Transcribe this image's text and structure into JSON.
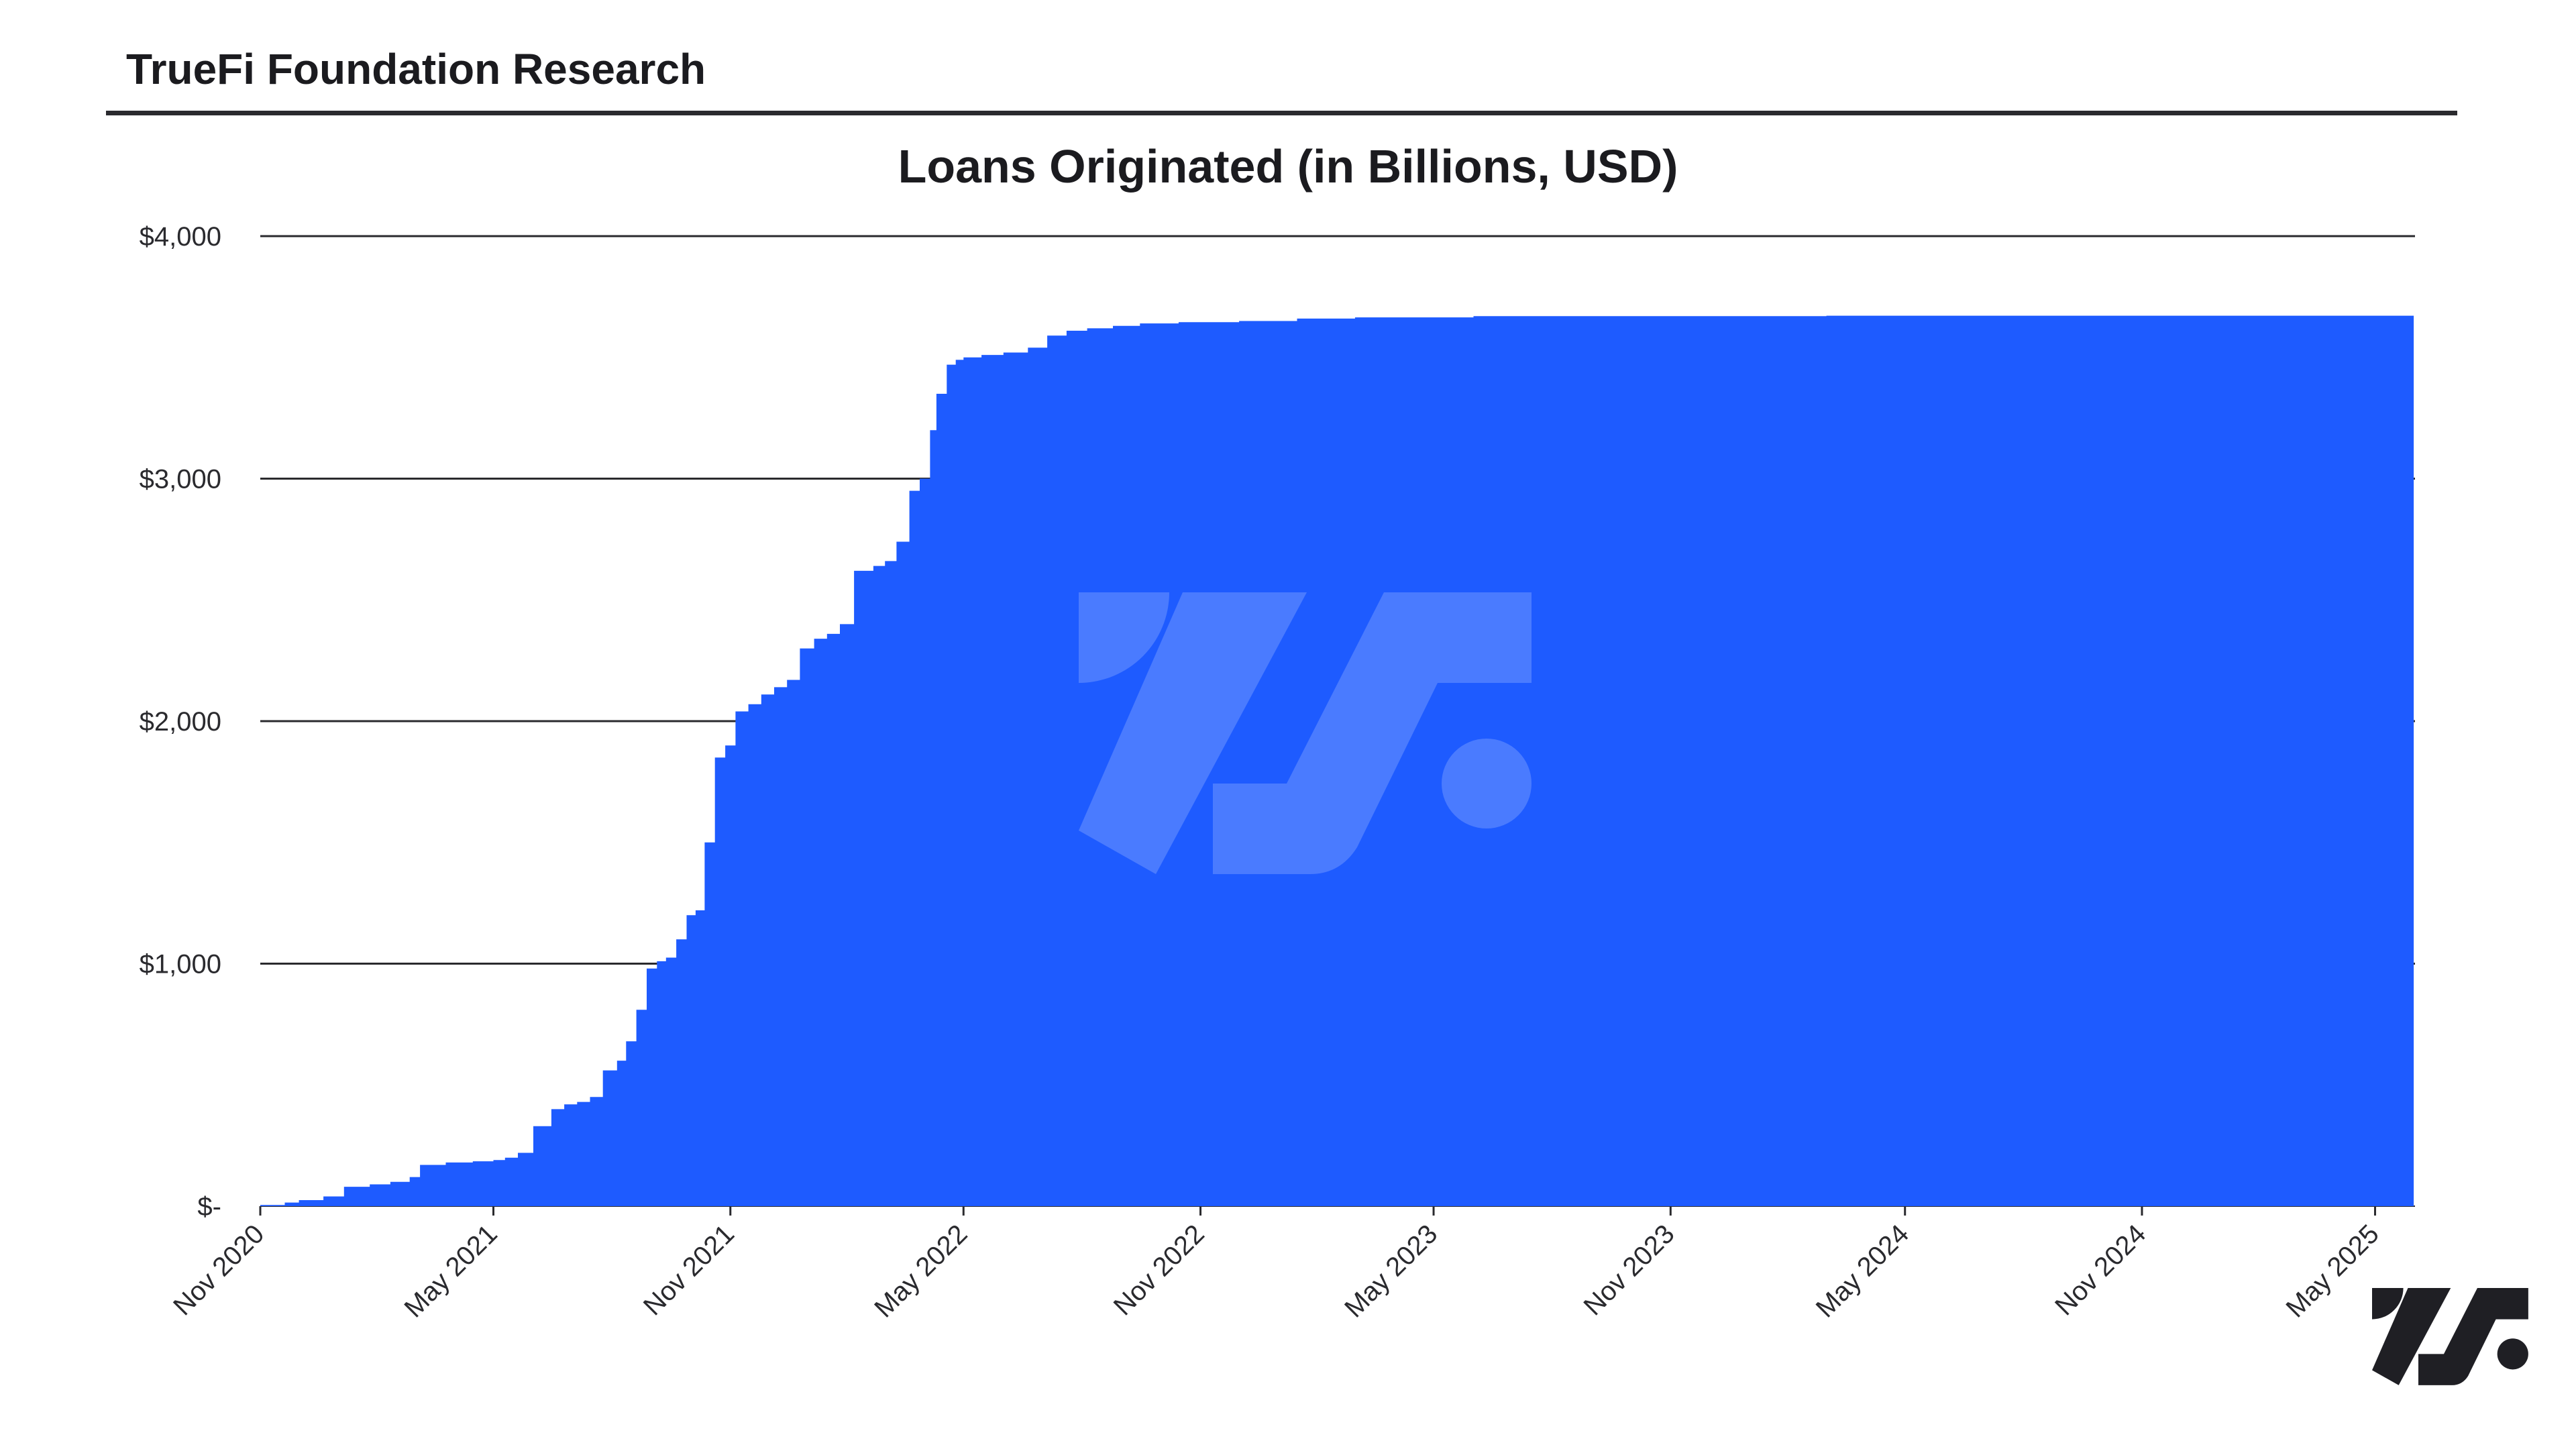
{
  "header": {
    "brand_title": "TrueFi Foundation Research"
  },
  "colors": {
    "area_fill": "#1E5BFF",
    "watermark": "#4A7BFF",
    "logo": "#1F1F24",
    "grid": "#2A2A2E"
  },
  "icons": {
    "watermark": "truefi-logo-icon",
    "corner_logo": "truefi-logo-icon"
  },
  "chart_data": {
    "type": "area",
    "title": "Loans Originated (in Billions, USD)",
    "xlabel": "",
    "ylabel": "",
    "x_axis": "date",
    "xlim": [
      "2020-11-01",
      "2025-06-01"
    ],
    "ylim": [
      0,
      4000
    ],
    "grid": "horizontal",
    "legend": "none",
    "x_tick_labels": [
      "Nov 2020",
      "May 2021",
      "Nov 2021",
      "May 2022",
      "Nov 2022",
      "May 2023",
      "Nov 2023",
      "May 2024",
      "Nov 2024",
      "May 2025"
    ],
    "x_tick_dates": [
      "2020-11-01",
      "2021-05-01",
      "2021-11-01",
      "2022-05-01",
      "2022-11-01",
      "2023-05-01",
      "2023-11-01",
      "2024-05-01",
      "2024-11-01",
      "2025-05-01"
    ],
    "y_ticks": [
      0,
      1000,
      2000,
      3000,
      4000
    ],
    "y_tick_labels": [
      "$-",
      "$1,000",
      "$2,000",
      "$3,000",
      "$4,000"
    ],
    "series": [
      {
        "x": [
          "2020-11-01",
          "2020-11-20",
          "2020-12-01",
          "2020-12-20",
          "2021-01-05",
          "2021-01-25",
          "2021-02-10",
          "2021-02-25",
          "2021-03-05",
          "2021-03-25",
          "2021-04-15",
          "2021-05-01",
          "2021-05-10",
          "2021-05-20",
          "2021-06-01",
          "2021-06-15",
          "2021-06-25",
          "2021-07-05",
          "2021-07-15",
          "2021-07-25",
          "2021-08-05",
          "2021-08-12",
          "2021-08-20",
          "2021-08-28",
          "2021-09-05",
          "2021-09-12",
          "2021-09-20",
          "2021-09-28",
          "2021-10-05",
          "2021-10-12",
          "2021-10-20",
          "2021-10-28",
          "2021-11-05",
          "2021-11-15",
          "2021-11-25",
          "2021-12-05",
          "2021-12-15",
          "2021-12-25",
          "2022-01-05",
          "2022-01-15",
          "2022-01-25",
          "2022-02-05",
          "2022-02-20",
          "2022-03-01",
          "2022-03-10",
          "2022-03-20",
          "2022-03-28",
          "2022-04-05",
          "2022-04-10",
          "2022-04-18",
          "2022-04-25",
          "2022-05-01",
          "2022-05-15",
          "2022-06-01",
          "2022-06-20",
          "2022-07-05",
          "2022-07-20",
          "2022-08-05",
          "2022-08-25",
          "2022-09-15",
          "2022-10-15",
          "2022-12-01",
          "2023-01-15",
          "2023-03-01",
          "2023-06-01",
          "2023-10-01",
          "2024-03-01",
          "2024-09-01",
          "2025-03-01",
          "2025-05-31"
        ],
        "values": [
          5,
          15,
          25,
          40,
          80,
          90,
          100,
          120,
          170,
          180,
          185,
          190,
          200,
          220,
          330,
          400,
          420,
          430,
          450,
          560,
          600,
          680,
          810,
          980,
          1010,
          1025,
          1100,
          1200,
          1220,
          1500,
          1850,
          1900,
          2040,
          2070,
          2110,
          2140,
          2170,
          2300,
          2340,
          2360,
          2400,
          2620,
          2640,
          2660,
          2740,
          2950,
          3000,
          3200,
          3350,
          3470,
          3490,
          3500,
          3510,
          3520,
          3540,
          3590,
          3610,
          3620,
          3630,
          3640,
          3645,
          3650,
          3660,
          3665,
          3670,
          3670,
          3672,
          3672,
          3672,
          3672
        ]
      }
    ]
  }
}
